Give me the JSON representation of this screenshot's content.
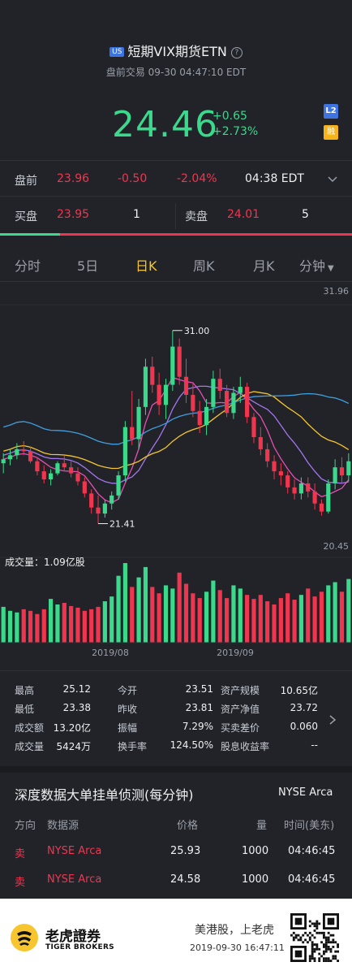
{
  "header": {
    "market_badge": "US",
    "title": "短期VIX期货ETN",
    "help_icon": "?",
    "subtitle": "盘前交易 09-30 04:47:10 EDT"
  },
  "quote": {
    "price": "24.46",
    "change": "+0.65",
    "change_pct": "+2.73%",
    "l2_badge": "L2",
    "margin_badge": "融"
  },
  "premarket": {
    "label": "盘前",
    "price": "23.96",
    "change": "-0.50",
    "change_pct": "-2.04%",
    "time": "04:38 EDT"
  },
  "orderbook": {
    "bid_label": "买盘",
    "bid_price": "23.95",
    "bid_size": "1",
    "ask_label": "卖盘",
    "ask_price": "24.01",
    "ask_size": "5",
    "bid_ratio": 0.17
  },
  "tabs": [
    "分时",
    "5日",
    "日K",
    "周K",
    "月K",
    "分钟"
  ],
  "active_tab": "日K",
  "chart_data": {
    "type": "candlestick",
    "y_max_label": "31.96",
    "y_min_label": "20.45",
    "ylim": [
      20.45,
      31.96
    ],
    "high_annotation": "31.00",
    "low_annotation": "21.41",
    "x_labels": [
      "2019/08",
      "2019/09"
    ],
    "volume_label": "成交量：1.09亿股",
    "candles": [
      [
        24.4,
        24.9,
        23.9,
        24.6
      ],
      [
        24.6,
        25.1,
        24.3,
        24.8
      ],
      [
        24.8,
        25.4,
        24.6,
        25.1
      ],
      [
        25.1,
        25.5,
        24.8,
        25.0
      ],
      [
        25.0,
        25.2,
        24.4,
        24.5
      ],
      [
        24.5,
        24.7,
        23.8,
        24.0
      ],
      [
        24.0,
        24.3,
        23.4,
        23.6
      ],
      [
        23.6,
        24.1,
        23.3,
        23.9
      ],
      [
        23.9,
        24.5,
        23.8,
        24.4
      ],
      [
        24.4,
        24.8,
        24.0,
        24.2
      ],
      [
        24.2,
        24.5,
        23.7,
        23.9
      ],
      [
        23.9,
        24.2,
        23.3,
        23.5
      ],
      [
        23.5,
        23.7,
        22.7,
        22.9
      ],
      [
        22.9,
        23.1,
        21.9,
        22.2
      ],
      [
        22.2,
        22.8,
        21.4,
        21.9
      ],
      [
        21.9,
        22.6,
        21.7,
        22.4
      ],
      [
        22.4,
        23.0,
        22.1,
        22.8
      ],
      [
        22.8,
        24.0,
        22.6,
        23.8
      ],
      [
        23.8,
        26.5,
        23.5,
        26.2
      ],
      [
        26.2,
        28.0,
        25.3,
        25.6
      ],
      [
        25.6,
        27.6,
        25.1,
        27.2
      ],
      [
        27.2,
        29.6,
        26.8,
        29.2
      ],
      [
        29.2,
        29.7,
        27.9,
        28.3
      ],
      [
        28.3,
        28.9,
        26.8,
        27.3
      ],
      [
        27.3,
        28.6,
        26.6,
        28.3
      ],
      [
        28.3,
        31.0,
        28.0,
        30.2
      ],
      [
        30.2,
        30.6,
        28.3,
        28.7
      ],
      [
        28.7,
        29.6,
        27.4,
        27.8
      ],
      [
        27.8,
        28.4,
        26.7,
        27.0
      ],
      [
        27.0,
        27.5,
        25.9,
        26.3
      ],
      [
        26.3,
        27.6,
        25.8,
        27.2
      ],
      [
        27.2,
        29.0,
        26.9,
        28.6
      ],
      [
        28.6,
        29.1,
        27.6,
        28.0
      ],
      [
        28.0,
        28.3,
        26.7,
        26.9
      ],
      [
        26.9,
        28.2,
        26.6,
        27.9
      ],
      [
        27.9,
        28.7,
        27.4,
        28.2
      ],
      [
        28.2,
        28.4,
        26.4,
        26.7
      ],
      [
        26.7,
        26.9,
        25.4,
        25.7
      ],
      [
        25.7,
        26.2,
        24.8,
        25.1
      ],
      [
        25.1,
        25.4,
        24.2,
        24.5
      ],
      [
        24.5,
        24.8,
        23.6,
        24.0
      ],
      [
        24.0,
        24.4,
        23.3,
        23.8
      ],
      [
        23.8,
        24.0,
        22.9,
        23.2
      ],
      [
        23.2,
        23.6,
        22.6,
        22.9
      ],
      [
        22.9,
        23.7,
        22.6,
        23.4
      ],
      [
        23.4,
        23.7,
        22.7,
        23.0
      ],
      [
        23.0,
        23.4,
        22.1,
        22.4
      ],
      [
        22.4,
        22.6,
        21.8,
        22.0
      ],
      [
        22.0,
        23.6,
        21.9,
        23.4
      ],
      [
        23.4,
        24.6,
        23.1,
        24.2
      ],
      [
        24.2,
        24.7,
        23.4,
        23.8
      ],
      [
        23.8,
        24.9,
        23.5,
        24.5
      ]
    ],
    "volumes": [
      45,
      40,
      38,
      42,
      40,
      36,
      42,
      55,
      48,
      50,
      46,
      44,
      40,
      42,
      45,
      52,
      58,
      84,
      100,
      70,
      82,
      95,
      70,
      62,
      72,
      68,
      88,
      74,
      62,
      56,
      64,
      78,
      66,
      56,
      72,
      68,
      60,
      55,
      60,
      52,
      48,
      56,
      62,
      54,
      60,
      68,
      58,
      64,
      72,
      76,
      64,
      80
    ]
  },
  "stats": [
    {
      "label": "最高",
      "value": "25.12"
    },
    {
      "label": "今开",
      "value": "23.51"
    },
    {
      "label": "资产规模",
      "value": "10.65亿"
    },
    {
      "label": "最低",
      "value": "23.38"
    },
    {
      "label": "昨收",
      "value": "23.81"
    },
    {
      "label": "资产净值",
      "value": "23.72"
    },
    {
      "label": "成交额",
      "value": "13.20亿"
    },
    {
      "label": "振幅",
      "value": "7.29%"
    },
    {
      "label": "买卖差价",
      "value": "0.060"
    },
    {
      "label": "成交量",
      "value": "5424万"
    },
    {
      "label": "换手率",
      "value": "124.50%"
    },
    {
      "label": "股息收益率",
      "value": "--"
    }
  ],
  "depth": {
    "title": "深度数据大单挂单侦测(每分钟)",
    "exchange": "NYSE Arca",
    "headers": [
      "方向",
      "数据源",
      "价格",
      "量",
      "时间(美东)"
    ],
    "rows": [
      {
        "side": "卖",
        "source": "NYSE Arca",
        "price": "25.93",
        "qty": "1000",
        "time": "04:46:45"
      },
      {
        "side": "卖",
        "source": "NYSE Arca",
        "price": "24.58",
        "qty": "1000",
        "time": "04:46:45"
      }
    ]
  },
  "footer": {
    "brand_cn": "老虎證券",
    "brand_en": "TIGER BROKERS",
    "slogan": "美港股，上老虎",
    "timestamp": "2019-09-30 16:47:11"
  },
  "colors": {
    "background": "#212328",
    "up": "#3bd98b",
    "down": "#f0364f",
    "accent": "#f6c530"
  }
}
